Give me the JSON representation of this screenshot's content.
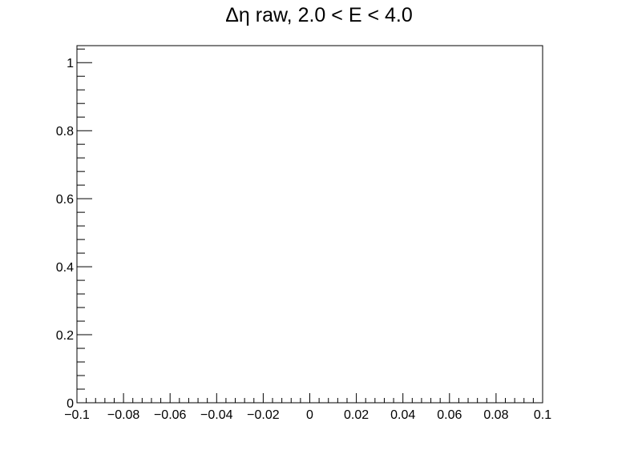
{
  "chart_data": {
    "type": "line",
    "title": "Δη raw, 2.0 < E < 4.0",
    "xlabel": "",
    "ylabel": "",
    "xlim": [
      -0.1,
      0.1
    ],
    "ylim": [
      0,
      1.05
    ],
    "x_ticks": [
      -0.1,
      -0.08,
      -0.06,
      -0.04,
      -0.02,
      0,
      0.02,
      0.04,
      0.06,
      0.08,
      0.1
    ],
    "x_tick_labels": [
      "−0.1",
      "−0.08",
      "−0.06",
      "−0.04",
      "−0.02",
      "0",
      "0.02",
      "0.04",
      "0.06",
      "0.08",
      "0.1"
    ],
    "y_ticks": [
      0,
      0.2,
      0.4,
      0.6,
      0.8,
      1
    ],
    "y_tick_labels": [
      "0",
      "0.2",
      "0.4",
      "0.6",
      "0.8",
      "1"
    ],
    "x_minor_per_major": 5,
    "y_minor_per_major": 5,
    "series": [],
    "grid": false,
    "legend": "none",
    "colors": {
      "axis": "#000000",
      "background": "#ffffff"
    }
  }
}
